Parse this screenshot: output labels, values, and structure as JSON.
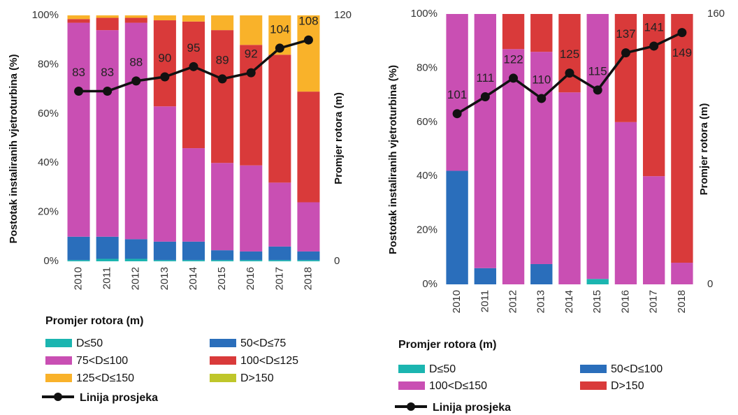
{
  "chart_data": [
    {
      "type": "bar",
      "stacked": true,
      "y_label": "Postotak instaliranih vjetroturbina (%)",
      "y2_label": "Promjer rotora (m)",
      "legend_title": "Promjer rotora (m)",
      "categories": [
        "2010",
        "2011",
        "2012",
        "2013",
        "2014",
        "2015",
        "2016",
        "2017",
        "2018"
      ],
      "ylim": [
        0,
        100
      ],
      "yticks": [
        {
          "value": 0,
          "label": "0%"
        },
        {
          "value": 20,
          "label": "20%"
        },
        {
          "value": 40,
          "label": "40%"
        },
        {
          "value": 60,
          "label": "60%"
        },
        {
          "value": 80,
          "label": "80%"
        },
        {
          "value": 100,
          "label": "100%"
        }
      ],
      "y2lim": [
        0,
        120
      ],
      "y2ticks": [
        0,
        120
      ],
      "series": [
        {
          "name": "D≤50",
          "color": "#1bb5b0",
          "values": [
            0.5,
            1,
            1,
            0.5,
            0.5,
            0.5,
            0.5,
            0.5,
            0.5
          ]
        },
        {
          "name": "50<D≤75",
          "color": "#2a6ebb",
          "values": [
            9.5,
            9,
            8,
            7.5,
            7.5,
            4,
            3.5,
            5.5,
            3.5
          ]
        },
        {
          "name": "75<D≤100",
          "color": "#c94fb3",
          "values": [
            87,
            84,
            88,
            55,
            38,
            35.5,
            35,
            26,
            20
          ]
        },
        {
          "name": "100<D≤125",
          "color": "#d93a3a",
          "values": [
            1.5,
            5,
            2,
            35,
            51.5,
            54,
            49,
            52,
            45
          ]
        },
        {
          "name": "125<D≤150",
          "color": "#f9b22a",
          "values": [
            1.5,
            1,
            1,
            2,
            2.5,
            6,
            12,
            16,
            31
          ]
        },
        {
          "name": "D>150",
          "color": "#bfc62a",
          "values": [
            0,
            0,
            0,
            0,
            0,
            0,
            0,
            0,
            0
          ]
        },
        {
          "name": "Linija prosjeka",
          "type": "line",
          "axis": "y2",
          "color": "#111111",
          "values": [
            83,
            83,
            88,
            90,
            95,
            89,
            92,
            104,
            108
          ]
        }
      ]
    },
    {
      "type": "bar",
      "stacked": true,
      "y_label": "Postotak instaliranih vjetroturbina (%)",
      "y2_label": "Promjer rotora (m)",
      "legend_title": "Promjer rotora (m)",
      "categories": [
        "2010",
        "2011",
        "2012",
        "2013",
        "2014",
        "2015",
        "2016",
        "2017",
        "2018"
      ],
      "ylim": [
        0,
        100
      ],
      "yticks": [
        {
          "value": 0,
          "label": "0%"
        },
        {
          "value": 20,
          "label": "20%"
        },
        {
          "value": 40,
          "label": "40%"
        },
        {
          "value": 60,
          "label": "60%"
        },
        {
          "value": 80,
          "label": "80%"
        },
        {
          "value": 100,
          "label": "100%"
        }
      ],
      "y2lim": [
        0,
        160
      ],
      "y2ticks": [
        0,
        160
      ],
      "series": [
        {
          "name": "D≤50",
          "color": "#1bb5b0",
          "values": [
            0,
            0,
            0,
            0,
            0,
            2,
            0,
            0,
            0
          ]
        },
        {
          "name": "50<D≤100",
          "color": "#2a6ebb",
          "values": [
            42,
            6,
            0,
            7.5,
            0,
            0,
            0,
            0,
            0
          ]
        },
        {
          "name": "100<D≤150",
          "color": "#c94fb3",
          "values": [
            58,
            94,
            87,
            78.5,
            71,
            98,
            60,
            40,
            8
          ]
        },
        {
          "name": "D>150",
          "color": "#d93a3a",
          "values": [
            0,
            0,
            13,
            14,
            29,
            0,
            40,
            60,
            92
          ]
        },
        {
          "name": "Linija prosjeka",
          "type": "line",
          "axis": "y2",
          "color": "#111111",
          "values": [
            101,
            111,
            122,
            110,
            125,
            115,
            137,
            141,
            149
          ]
        }
      ]
    }
  ]
}
